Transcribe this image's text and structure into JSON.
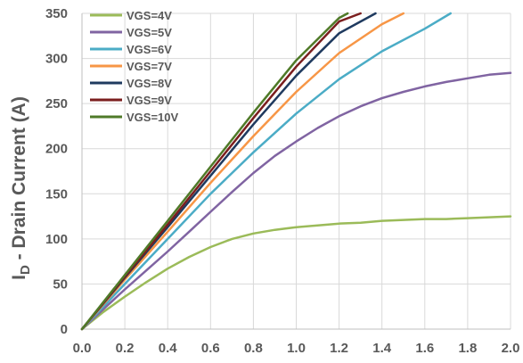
{
  "chart_data": {
    "type": "line",
    "xlabel": "",
    "ylabel_main": "I",
    "ylabel_sub": "D",
    "ylabel_rest": " - Drain Current (A)",
    "xlim": [
      0,
      2.0
    ],
    "ylim": [
      0,
      350
    ],
    "xticks": [
      "0.0",
      "0.2",
      "0.4",
      "0.6",
      "0.8",
      "1.0",
      "1.2",
      "1.4",
      "1.6",
      "1.8",
      "2.0"
    ],
    "yticks": [
      "0",
      "50",
      "100",
      "150",
      "200",
      "250",
      "300",
      "350"
    ],
    "grid": true,
    "legend_position": "top-left",
    "series": [
      {
        "name": "VGS=4V",
        "color": "#9bbb59",
        "x": [
          0,
          0.1,
          0.2,
          0.3,
          0.4,
          0.5,
          0.6,
          0.7,
          0.8,
          0.9,
          1.0,
          1.1,
          1.2,
          1.3,
          1.4,
          1.5,
          1.6,
          1.7,
          1.8,
          1.9,
          2.0
        ],
        "y": [
          0,
          19,
          36,
          52,
          67,
          80,
          91,
          100,
          106,
          110,
          113,
          115,
          117,
          118,
          120,
          121,
          122,
          122,
          123,
          124,
          125
        ]
      },
      {
        "name": "VGS=5V",
        "color": "#8064a2",
        "x": [
          0,
          0.1,
          0.2,
          0.3,
          0.4,
          0.5,
          0.6,
          0.7,
          0.8,
          0.9,
          1.0,
          1.1,
          1.2,
          1.3,
          1.4,
          1.5,
          1.6,
          1.7,
          1.8,
          1.9,
          2.0
        ],
        "y": [
          0,
          22,
          44,
          65,
          86,
          108,
          130,
          152,
          173,
          192,
          208,
          223,
          236,
          247,
          256,
          263,
          269,
          274,
          278,
          282,
          284
        ]
      },
      {
        "name": "VGS=6V",
        "color": "#4bacc6",
        "x": [
          0,
          0.2,
          0.4,
          0.6,
          0.8,
          1.0,
          1.2,
          1.4,
          1.6,
          1.72
        ],
        "y": [
          0,
          50,
          100,
          150,
          196,
          239,
          277,
          308,
          333,
          350
        ]
      },
      {
        "name": "VGS=7V",
        "color": "#f79646",
        "x": [
          0,
          0.2,
          0.4,
          0.6,
          0.8,
          1.0,
          1.2,
          1.4,
          1.5
        ],
        "y": [
          0,
          55,
          108,
          162,
          214,
          263,
          306,
          338,
          350
        ]
      },
      {
        "name": "VGS=8V",
        "color": "#1f3a5f",
        "x": [
          0,
          0.2,
          0.4,
          0.6,
          0.8,
          1.0,
          1.2,
          1.37
        ],
        "y": [
          0,
          57,
          113,
          170,
          227,
          281,
          328,
          350
        ]
      },
      {
        "name": "VGS=9V",
        "color": "#7b1e1e",
        "x": [
          0,
          0.2,
          0.4,
          0.6,
          0.8,
          1.0,
          1.2,
          1.3
        ],
        "y": [
          0,
          58,
          116,
          175,
          234,
          291,
          341,
          350
        ]
      },
      {
        "name": "VGS=10V",
        "color": "#4f7a28",
        "x": [
          0,
          0.2,
          0.4,
          0.6,
          0.8,
          1.0,
          1.2,
          1.24
        ],
        "y": [
          0,
          60,
          120,
          180,
          240,
          298,
          345,
          350
        ]
      }
    ]
  }
}
